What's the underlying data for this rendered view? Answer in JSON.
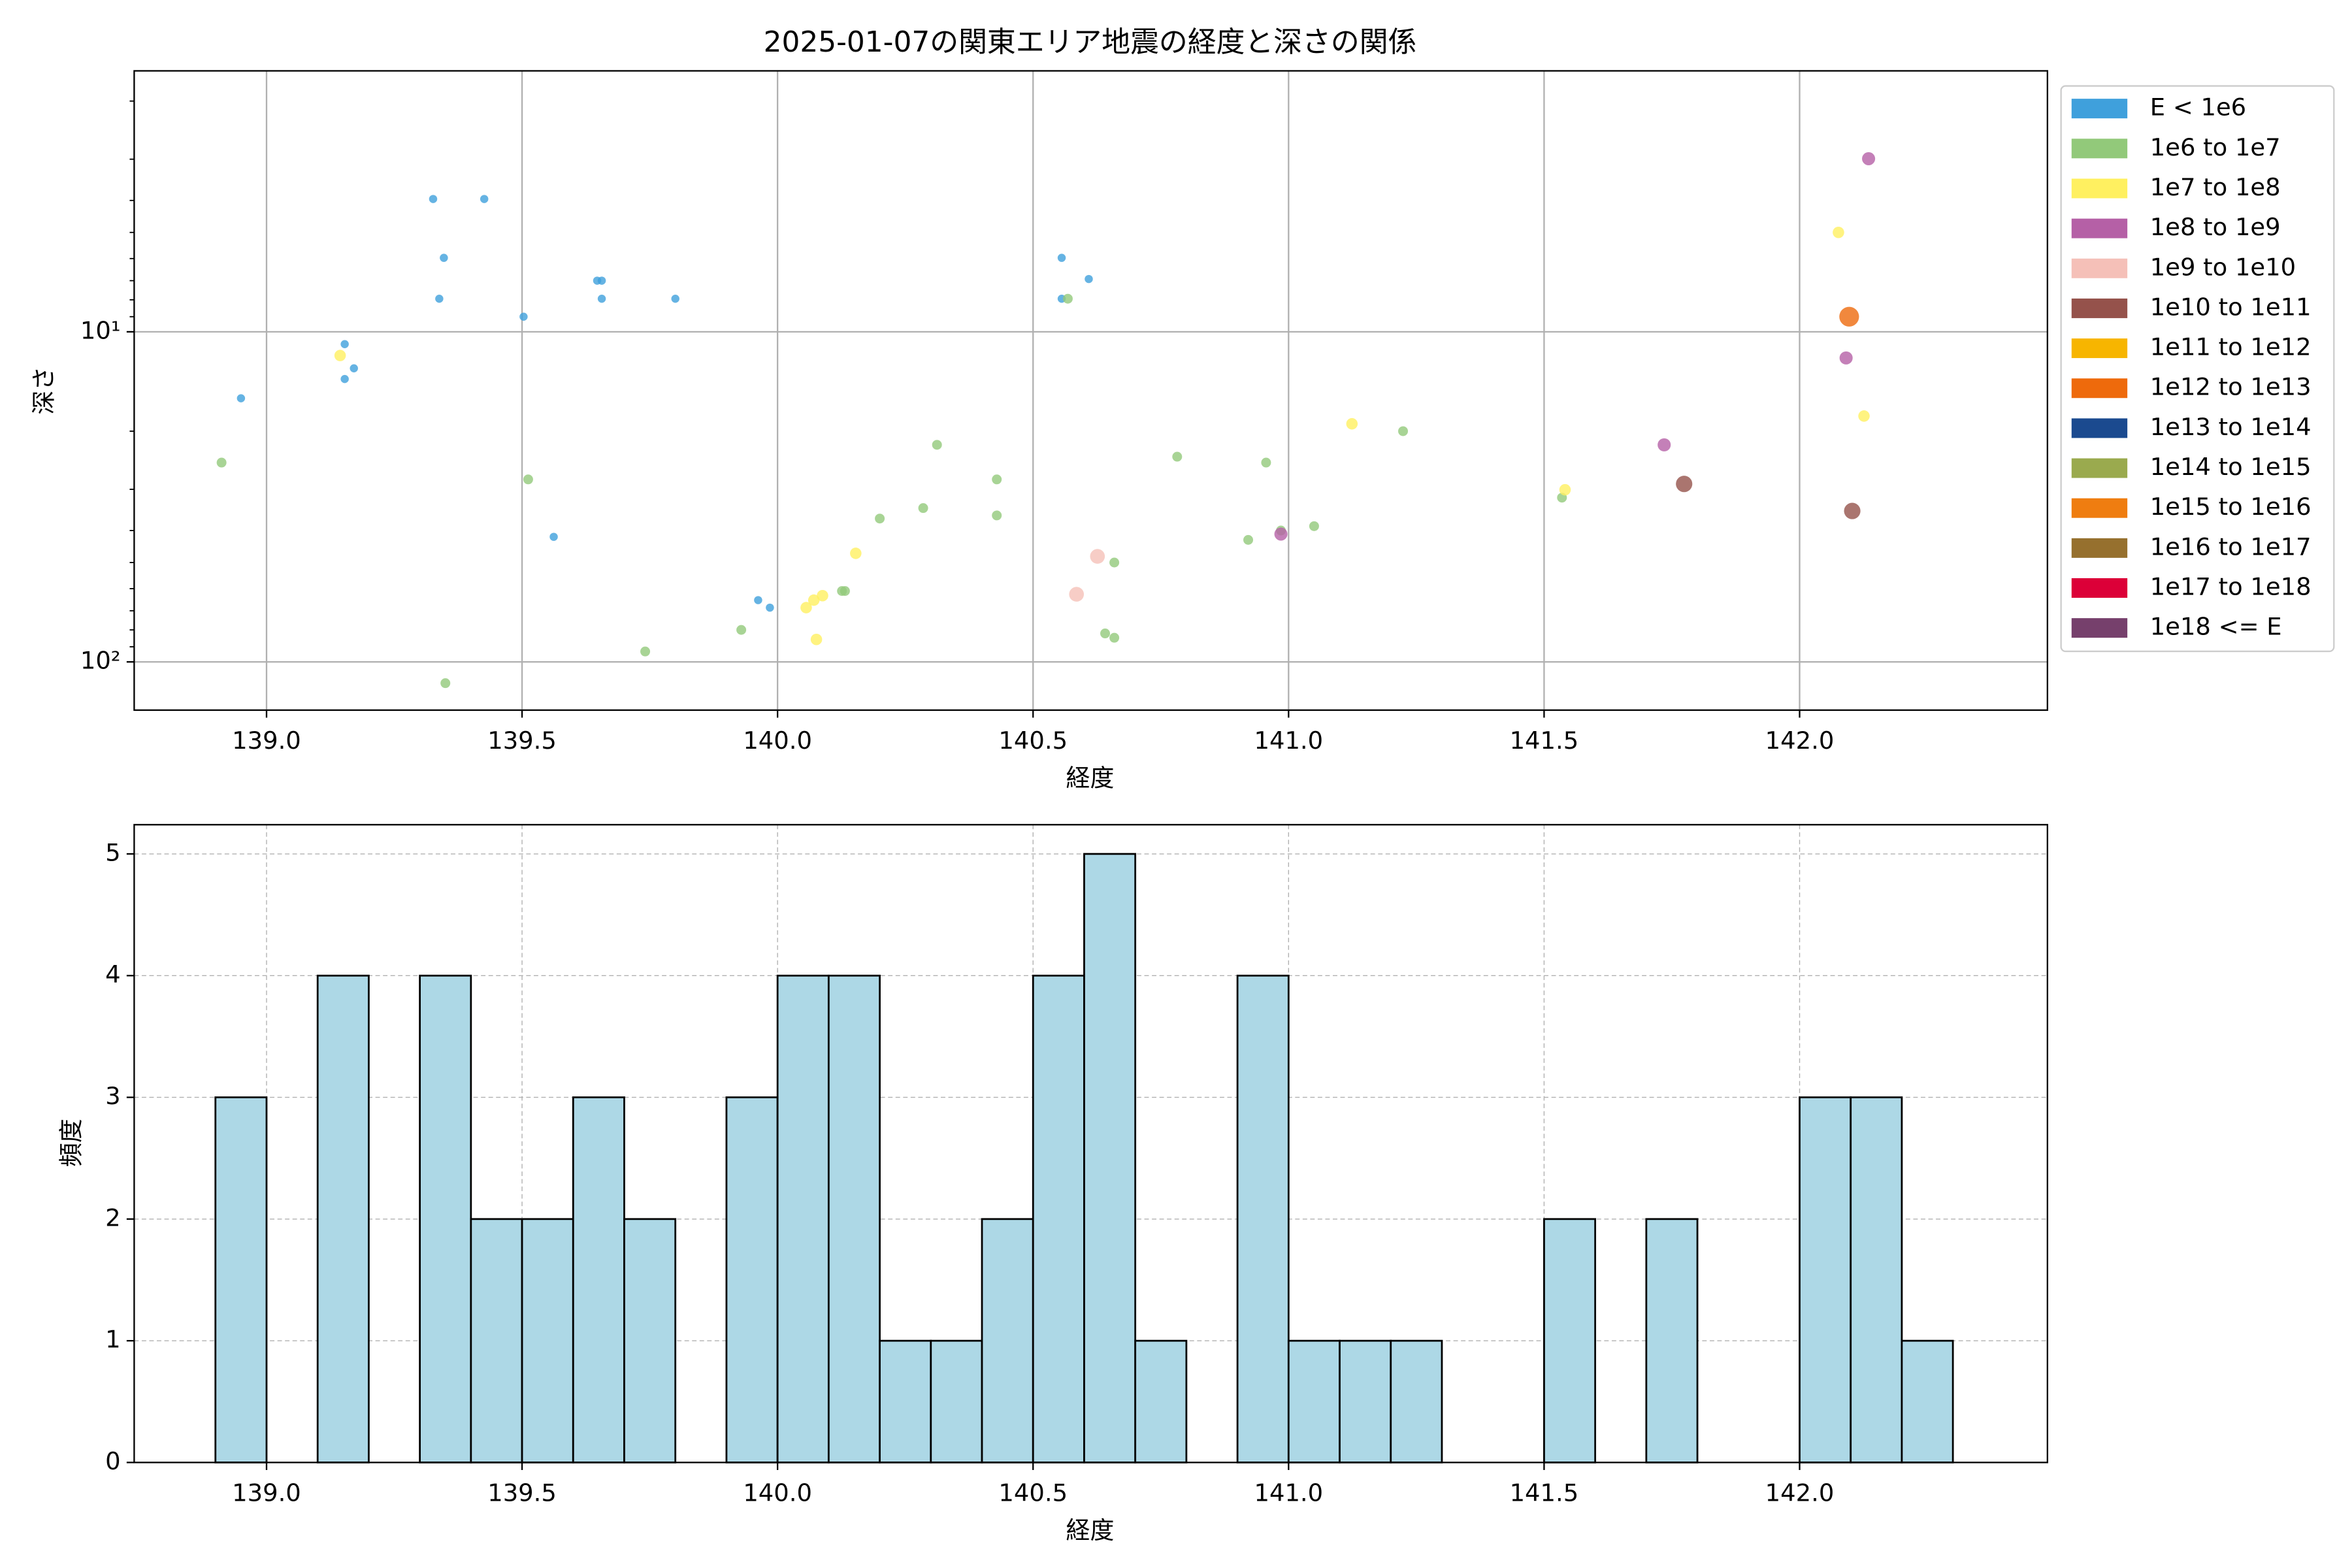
{
  "chart_data": [
    {
      "type": "scatter",
      "title": "2025-01-07の関東エリア地震の経度と深さの関係",
      "xlabel": "経度",
      "ylabel": "深さ",
      "xlim": [
        138.741,
        142.485
      ],
      "xticks": [
        {
          "value": 139,
          "label": "139.0"
        },
        {
          "value": 139.5,
          "label": "139.5"
        },
        {
          "value": 140,
          "label": "140.0"
        },
        {
          "value": 140.5,
          "label": "140.5"
        },
        {
          "value": 141,
          "label": "141.0"
        },
        {
          "value": 141.5,
          "label": "141.5"
        },
        {
          "value": 142,
          "label": "142.0"
        }
      ],
      "ylim": [
        140,
        1.62
      ],
      "yticks": [
        {
          "value": 10,
          "label": "10¹"
        },
        {
          "value": 100,
          "label": "10²"
        }
      ],
      "log_y": true,
      "grid": true,
      "legend": "outside right",
      "series": [
        {
          "name": "E < 1e6",
          "color": "#3fa0dc",
          "x": [
            139.326,
            139.426,
            139.347,
            139.338,
            139.503,
            139.647,
            139.656,
            139.656,
            139.8,
            139.153,
            139.171,
            139.153,
            138.95,
            139.562,
            139.962,
            139.985,
            140.556,
            140.556,
            140.609
          ],
          "values": [
            3.96,
            3.96,
            5.97,
            7.94,
            9.0,
            7.0,
            7.0,
            7.94,
            7.94,
            10.9,
            12.9,
            13.9,
            15.9,
            41.8,
            65,
            68.5,
            5.97,
            7.94,
            6.92
          ]
        },
        {
          "name": "1e6 to 1e7",
          "color": "#92c97a",
          "x": [
            138.912,
            139.512,
            139.35,
            139.741,
            139.929,
            140.126,
            140.132,
            140.2,
            140.285,
            140.312,
            140.429,
            140.429,
            140.568,
            140.659,
            140.641,
            140.659,
            140.782,
            140.956,
            140.921,
            140.985,
            141.05,
            141.224,
            141.535
          ],
          "values": [
            24.9,
            28,
            116,
            93,
            80,
            61,
            61,
            36.8,
            34.2,
            22,
            28,
            36,
            7.94,
            50,
            82,
            84.5,
            23.9,
            24.9,
            42.7,
            40,
            38.8,
            20,
            31.8
          ]
        },
        {
          "name": "1e7 to 1e8",
          "color": "#fff060",
          "x": [
            139.144,
            140.153,
            140.056,
            140.071,
            140.088,
            140.076,
            141.124,
            141.541,
            142.076,
            142.126
          ],
          "values": [
            11.8,
            46.9,
            68.5,
            65,
            63,
            85.5,
            19,
            30.1,
            5.0,
            18
          ]
        },
        {
          "name": "1e8 to 1e9",
          "color": "#b560a6",
          "x": [
            142.135,
            142.091,
            141.735,
            140.985
          ],
          "values": [
            2.99,
            12,
            22,
            41
          ]
        },
        {
          "name": "1e9 to 1e10",
          "color": "#f5c0b8",
          "x": [
            140.626,
            140.585
          ],
          "values": [
            47.9,
            62.4
          ]
        },
        {
          "name": "1e10 to 1e11",
          "color": "#95524b",
          "x": [
            141.774,
            142.103
          ],
          "values": [
            28.9,
            34.9
          ]
        },
        {
          "name": "1e11 to 1e12",
          "color": "#f7b500",
          "x": [],
          "values": []
        },
        {
          "name": "1e12 to 1e13",
          "color": "#ee6a0c",
          "x": [
            142.097
          ],
          "values": [
            9.0
          ]
        },
        {
          "name": "1e13 to 1e14",
          "color": "#1b4a8f",
          "x": [],
          "values": []
        },
        {
          "name": "1e14 to 1e15",
          "color": "#9aaa4e",
          "x": [],
          "values": []
        },
        {
          "name": "1e15 to 1e16",
          "color": "#ef7d10",
          "x": [],
          "values": []
        },
        {
          "name": "1e16 to 1e17",
          "color": "#96702e",
          "x": [],
          "values": []
        },
        {
          "name": "1e17 to 1e18",
          "color": "#dc0038",
          "x": [],
          "values": []
        },
        {
          "name": "1e18 <= E",
          "color": "#76406c",
          "x": [],
          "values": []
        }
      ]
    },
    {
      "type": "histogram",
      "xlabel": "経度",
      "ylabel": "頻度",
      "color": "#add8e6",
      "edgecolor": "#000000",
      "xlim": [
        138.741,
        142.485
      ],
      "xticks": [
        {
          "value": 139,
          "label": "139.0"
        },
        {
          "value": 139.5,
          "label": "139.5"
        },
        {
          "value": 140,
          "label": "140.0"
        },
        {
          "value": 140.5,
          "label": "140.5"
        },
        {
          "value": 141,
          "label": "141.0"
        },
        {
          "value": 141.5,
          "label": "141.5"
        },
        {
          "value": 142,
          "label": "142.0"
        }
      ],
      "ylim": [
        0,
        5.24
      ],
      "yticks": [
        0,
        1,
        2,
        3,
        4,
        5
      ],
      "grid": true,
      "bins": [
        138.9,
        139.0,
        139.1,
        139.2,
        139.3,
        139.4,
        139.5,
        139.6,
        139.7,
        139.8,
        139.9,
        140.0,
        140.1,
        140.2,
        140.3,
        140.4,
        140.5,
        140.6,
        140.7,
        140.8,
        140.9,
        141.0,
        141.1,
        141.2,
        141.3,
        141.4,
        141.5,
        141.6,
        141.7,
        141.8,
        141.9,
        142.0,
        142.1,
        142.2,
        142.3
      ],
      "values": [
        3,
        0,
        4,
        0,
        4,
        2,
        2,
        3,
        2,
        0,
        3,
        4,
        4,
        1,
        1,
        2,
        4,
        5,
        1,
        0,
        4,
        1,
        1,
        1,
        0,
        0,
        2,
        0,
        2,
        0,
        0,
        3,
        3,
        1
      ]
    }
  ]
}
